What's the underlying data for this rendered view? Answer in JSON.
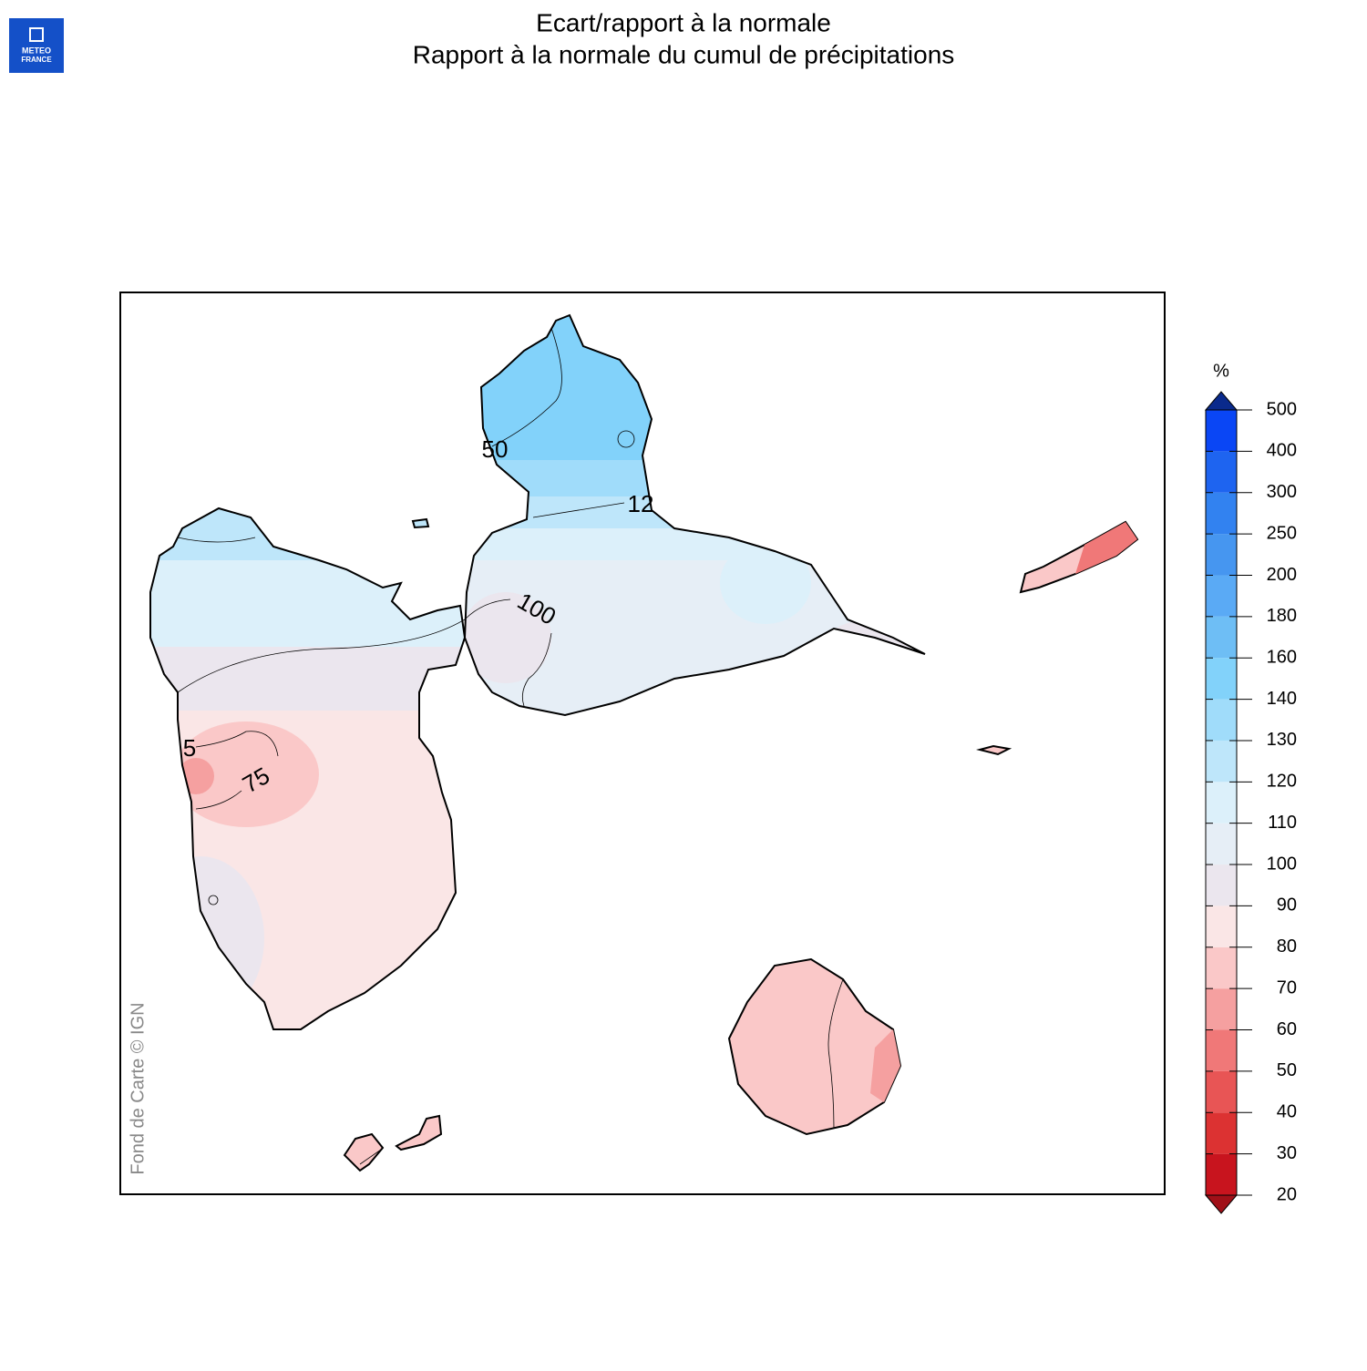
{
  "logo": {
    "line1": "METEO",
    "line2": "FRANCE"
  },
  "title": "Ecart/rapport à la normale",
  "subtitle": "Rapport à la normale du cumul de précipitations",
  "credit": "Fond de Carte © IGN",
  "contour_labels": [
    "50",
    "12",
    "100",
    "75",
    "5"
  ],
  "colorbar": {
    "unit": "%",
    "ticks": [
      20,
      30,
      40,
      50,
      60,
      70,
      80,
      90,
      100,
      110,
      120,
      130,
      140,
      160,
      180,
      200,
      250,
      300,
      400,
      500
    ],
    "colors": [
      "#c8141e",
      "#dc3232",
      "#e85555",
      "#f07878",
      "#f5a0a0",
      "#fac8c8",
      "#fae6e6",
      "#ebe6ee",
      "#e6eef6",
      "#dcf0fa",
      "#bee6fa",
      "#a0dcfa",
      "#82d2fa",
      "#6ebef5",
      "#5aaaf5",
      "#4696f0",
      "#3282f0",
      "#1e64f0",
      "#0a46f5"
    ],
    "over_color": "#0a2a8c",
    "under_color": "#a01018"
  }
}
